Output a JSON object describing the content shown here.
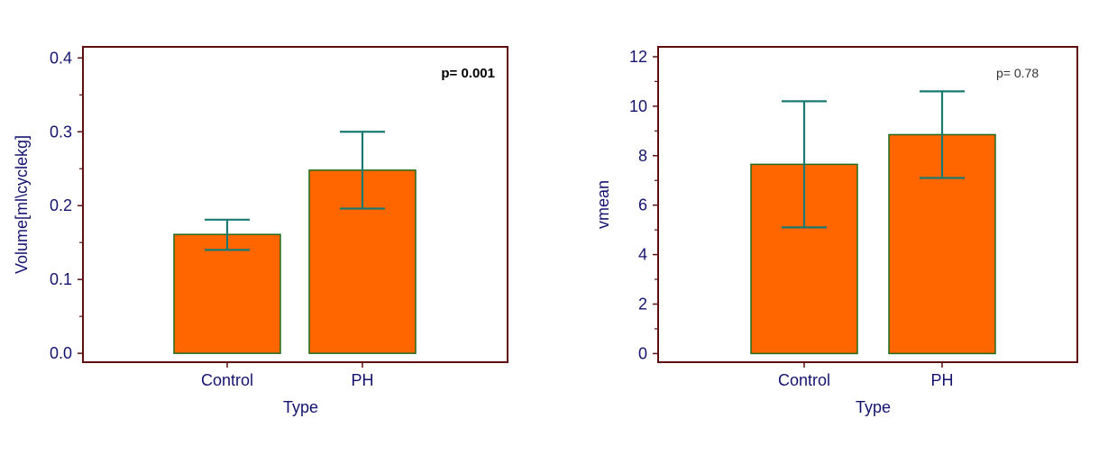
{
  "chart_data": [
    {
      "type": "bar",
      "categories": [
        "Control",
        "PH"
      ],
      "values": [
        0.161,
        0.248
      ],
      "error_low": [
        0.14,
        0.196
      ],
      "error_high": [
        0.181,
        0.3
      ],
      "xlabel": "Type",
      "ylabel": "Volume[ml\\cyclekg]",
      "ylim": [
        -0.012,
        0.415
      ],
      "yticks": [
        0.0,
        0.1,
        0.2,
        0.3,
        0.4
      ],
      "ytick_labels": [
        "0.0",
        "0.1",
        "0.2",
        "0.3",
        "0.4"
      ],
      "annotation": "p= 0.001",
      "grid": false
    },
    {
      "type": "bar",
      "categories": [
        "Control",
        "PH"
      ],
      "values": [
        7.65,
        8.85
      ],
      "error_low": [
        5.1,
        7.1
      ],
      "error_high": [
        10.2,
        10.6
      ],
      "xlabel": "Type",
      "ylabel": "vmean",
      "ylim": [
        -0.35,
        12.4
      ],
      "yticks": [
        0,
        2,
        4,
        6,
        8,
        10,
        12
      ],
      "ytick_labels": [
        "0",
        "2",
        "4",
        "6",
        "8",
        "10",
        "12"
      ],
      "annotation": "p= 0.78",
      "grid": false
    }
  ],
  "colors": {
    "bar_fill": "#ff6600",
    "bar_stroke": "#1e6b1e",
    "error_bar": "#1a7a72",
    "frame": "#5c1010",
    "text": "#14146e"
  }
}
